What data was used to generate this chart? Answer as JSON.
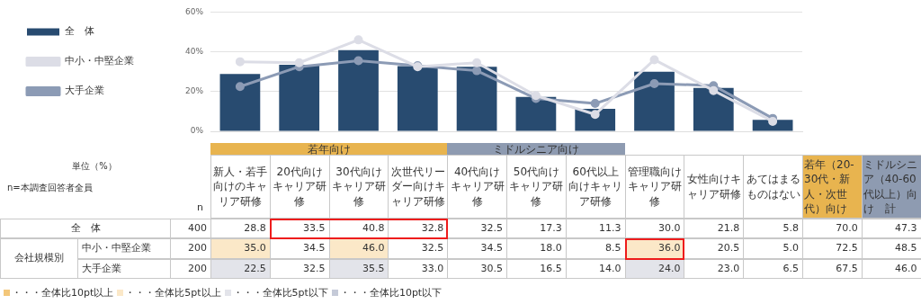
{
  "chart_data": {
    "type": "bar",
    "categories": [
      "新人・若手向けのキャリア研修",
      "20代向けキャリア研修",
      "30代向けキャリア研修",
      "次世代リーダー向けキャリア研修",
      "40代向けキャリア研修",
      "50代向けキャリア研修",
      "60代以上向けキャリア研修",
      "管理職向けキャリア研修",
      "女性向けキャリア研修",
      "あてはまるものはない"
    ],
    "series": [
      {
        "name": "全　体",
        "color": "#284b70",
        "values": [
          28.8,
          33.5,
          40.8,
          32.8,
          32.5,
          17.3,
          11.3,
          30.0,
          21.8,
          5.8
        ],
        "value_labels": [
          "28.8",
          "33.5",
          "40.8",
          "32.8",
          "32.5",
          "17.3",
          "11.3",
          "30.0",
          "21.8",
          "5.8"
        ]
      },
      {
        "name": "中小・中堅企業",
        "type": "line",
        "color": "#dcdde6",
        "values": [
          35.0,
          34.5,
          46.0,
          32.5,
          34.5,
          18.0,
          8.5,
          36.0,
          20.5,
          5.0
        ],
        "value_labels": [
          "35.0",
          "34.5",
          "46.0",
          "32.5",
          "34.5",
          "18.0",
          "8.5",
          "36.0",
          "20.5",
          "5.0"
        ]
      },
      {
        "name": "大手企業",
        "type": "line",
        "color": "#8c9bb5",
        "values": [
          22.5,
          32.5,
          35.5,
          33.0,
          30.5,
          16.5,
          14.0,
          24.0,
          23.0,
          6.5
        ],
        "value_labels": [
          "22.5",
          "32.5",
          "35.5",
          "33.0",
          "30.5",
          "16.5",
          "14.0",
          "24.0",
          "23.0",
          "6.5"
        ]
      }
    ],
    "ylim": [
      0,
      60
    ],
    "yticks": [
      {
        "value": 0,
        "label": "0%"
      },
      {
        "value": 20,
        "label": "20%"
      },
      {
        "value": 40,
        "label": "40%"
      },
      {
        "value": 60,
        "label": "60%"
      }
    ],
    "grid": "y",
    "legend": "left",
    "marker": "circle",
    "annotations": [
      "若年向け",
      "ミドルシニア向け",
      "若年（20-30代・新人・次世代）向け",
      "ミドルシニア（40-60代以上）向け　計",
      "単位（%）",
      "n=本調査回答者全員",
      "n",
      "会社規模別",
      "・・・全体比10pt以上",
      "・・・全体比5pt以上",
      "・・・全体比5pt以下",
      "・・・全体比10pt以下",
      "400",
      "200",
      "200",
      "70.0",
      "72.5",
      "67.5",
      "47.3",
      "48.5",
      "46.0"
    ]
  }
}
